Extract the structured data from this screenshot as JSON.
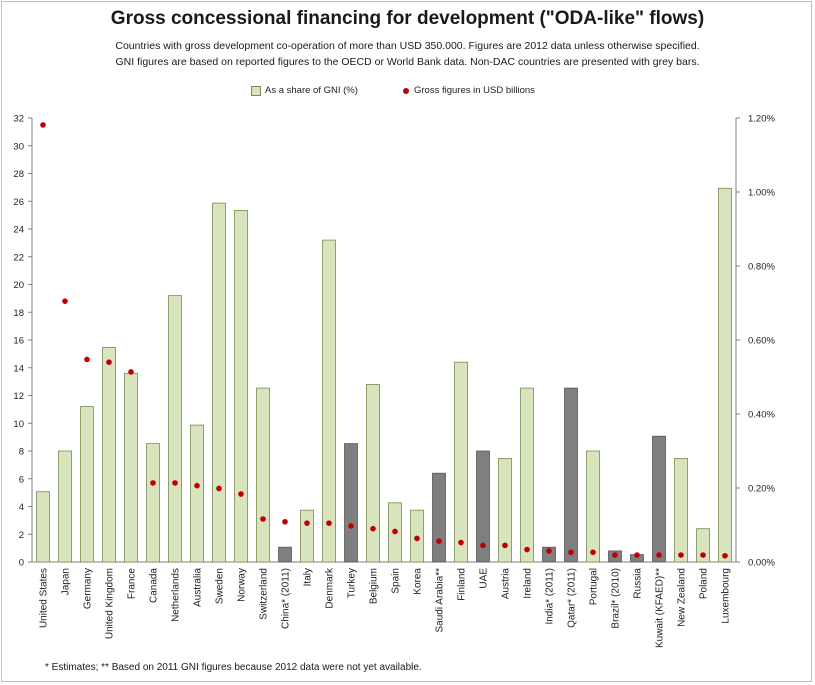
{
  "title": "Gross concessional financing for development (\"ODA-like\" flows)",
  "subtitle_lines": [
    "Countries with gross development co-operation of more than USD 350.000. Figures are 2012 data unless otherwise specified.",
    "GNI figures are based on reported figures to the OECD or World Bank data. Non-DAC countries are presented with grey bars."
  ],
  "footnote": "* Estimates; ** Based on 2011 GNI figures because 2012 data were not yet available.",
  "colors": {
    "dac_bar": "#d7e4bd",
    "dac_bar_border": "#7a8c4f",
    "non_dac_bar": "#7f7f7f",
    "non_dac_bar_border": "#595959",
    "dot": "#c00000",
    "axis": "#7f7f7f"
  },
  "chart_data": {
    "type": "bar",
    "categories": [
      "United States",
      "Japan",
      "Germany",
      "United Kingdom",
      "France",
      "Canada",
      "Netherlands",
      "Australia",
      "Sweden",
      "Norway",
      "Switzerland",
      "China* (2011)",
      "Italy",
      "Denmark",
      "Turkey",
      "Belgium",
      "Spain",
      "Korea",
      "Saudi Arabia**",
      "Finland",
      "UAE",
      "Austria",
      "Ireland",
      "India* (2011)",
      "Qatar* (2011)",
      "Portugal",
      "Brazil* (2010)",
      "Russia",
      "Kuwait (KFAED)**",
      "New Zealand",
      "Poland",
      "Luxembourg"
    ],
    "non_dac": [
      false,
      false,
      false,
      false,
      false,
      false,
      false,
      false,
      false,
      false,
      false,
      true,
      false,
      false,
      true,
      false,
      false,
      false,
      true,
      false,
      true,
      false,
      false,
      true,
      true,
      false,
      true,
      true,
      true,
      false,
      false,
      false
    ],
    "series": [
      {
        "name": "As a share of GNI (%)",
        "kind": "bar",
        "axis": "right",
        "values": [
          0.19,
          0.3,
          0.42,
          0.58,
          0.51,
          0.32,
          0.72,
          0.37,
          0.97,
          0.95,
          0.47,
          0.04,
          0.14,
          0.87,
          0.32,
          0.48,
          0.16,
          0.14,
          0.24,
          0.54,
          0.3,
          0.28,
          0.47,
          0.04,
          0.47,
          0.3,
          0.03,
          0.02,
          0.34,
          0.28,
          0.09,
          1.01
        ]
      },
      {
        "name": "Gross figures in USD billions",
        "kind": "scatter",
        "axis": "left",
        "values": [
          31.5,
          18.8,
          14.6,
          14.4,
          13.7,
          5.7,
          5.7,
          5.5,
          5.3,
          4.9,
          3.1,
          2.9,
          2.8,
          2.8,
          2.6,
          2.4,
          2.2,
          1.7,
          1.5,
          1.4,
          1.2,
          1.2,
          0.9,
          0.8,
          0.7,
          0.7,
          0.5,
          0.5,
          0.5,
          0.5,
          0.5,
          0.45
        ]
      }
    ],
    "left_axis": {
      "min": 0,
      "max": 32,
      "step": 2,
      "ticks": [
        "0",
        "2",
        "4",
        "6",
        "8",
        "10",
        "12",
        "14",
        "16",
        "18",
        "20",
        "22",
        "24",
        "26",
        "28",
        "30",
        "32"
      ]
    },
    "right_axis": {
      "min": 0,
      "max": 1.2,
      "ticks": [
        "0.00%",
        "0.20%",
        "0.40%",
        "0.60%",
        "0.80%",
        "1.00%",
        "1.20%"
      ]
    },
    "legend_position": "top",
    "grid": false
  }
}
